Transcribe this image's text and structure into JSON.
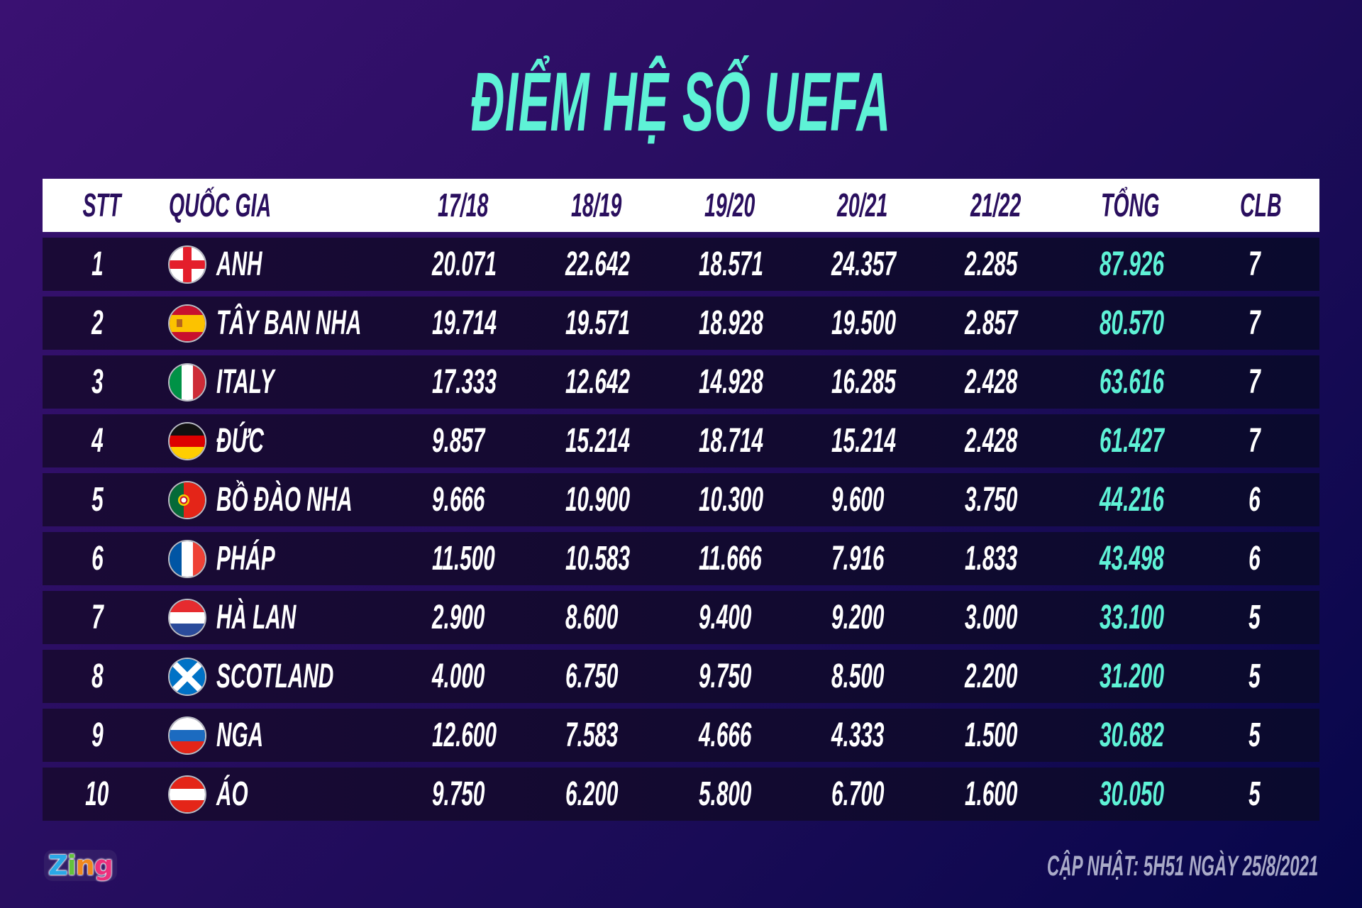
{
  "title": "ĐIỂM HỆ SỐ UEFA",
  "colors": {
    "accent": "#5ef2d6",
    "header_bg": "#ffffff",
    "header_text": "#2a0f5e",
    "row_bg": "#140a32",
    "background_start": "#3a1172",
    "background_end": "#06064a",
    "footer_text": "#a9aac8"
  },
  "table": {
    "columns": [
      "STT",
      "QUỐC GIA",
      "17/18",
      "18/19",
      "19/20",
      "20/21",
      "21/22",
      "TỔNG",
      "CLB"
    ],
    "rows": [
      {
        "rank": "1",
        "flag": "england-flag-icon",
        "country": "ANH",
        "s1718": "20.071",
        "s1819": "22.642",
        "s1920": "18.571",
        "s2021": "24.357",
        "s2122": "2.285",
        "total": "87.926",
        "clubs": "7"
      },
      {
        "rank": "2",
        "flag": "spain-flag-icon",
        "country": "TÂY BAN NHA",
        "s1718": "19.714",
        "s1819": "19.571",
        "s1920": "18.928",
        "s2021": "19.500",
        "s2122": "2.857",
        "total": "80.570",
        "clubs": "7"
      },
      {
        "rank": "3",
        "flag": "italy-flag-icon",
        "country": "ITALY",
        "s1718": "17.333",
        "s1819": "12.642",
        "s1920": "14.928",
        "s2021": "16.285",
        "s2122": "2.428",
        "total": "63.616",
        "clubs": "7"
      },
      {
        "rank": "4",
        "flag": "germany-flag-icon",
        "country": "ĐỨC",
        "s1718": "9.857",
        "s1819": "15.214",
        "s1920": "18.714",
        "s2021": "15.214",
        "s2122": "2.428",
        "total": "61.427",
        "clubs": "7"
      },
      {
        "rank": "5",
        "flag": "portugal-flag-icon",
        "country": "BỒ ĐÀO NHA",
        "s1718": "9.666",
        "s1819": "10.900",
        "s1920": "10.300",
        "s2021": "9.600",
        "s2122": "3.750",
        "total": "44.216",
        "clubs": "6"
      },
      {
        "rank": "6",
        "flag": "france-flag-icon",
        "country": "PHÁP",
        "s1718": "11.500",
        "s1819": "10.583",
        "s1920": "11.666",
        "s2021": "7.916",
        "s2122": "1.833",
        "total": "43.498",
        "clubs": "6"
      },
      {
        "rank": "7",
        "flag": "netherlands-flag-icon",
        "country": "HÀ LAN",
        "s1718": "2.900",
        "s1819": "8.600",
        "s1920": "9.400",
        "s2021": "9.200",
        "s2122": "3.000",
        "total": "33.100",
        "clubs": "5"
      },
      {
        "rank": "8",
        "flag": "scotland-flag-icon",
        "country": "SCOTLAND",
        "s1718": "4.000",
        "s1819": "6.750",
        "s1920": "9.750",
        "s2021": "8.500",
        "s2122": "2.200",
        "total": "31.200",
        "clubs": "5"
      },
      {
        "rank": "9",
        "flag": "russia-flag-icon",
        "country": "NGA",
        "s1718": "12.600",
        "s1819": "7.583",
        "s1920": "4.666",
        "s2021": "4.333",
        "s2122": "1.500",
        "total": "30.682",
        "clubs": "5"
      },
      {
        "rank": "10",
        "flag": "austria-flag-icon",
        "country": "ÁO",
        "s1718": "9.750",
        "s1819": "6.200",
        "s1920": "5.800",
        "s2021": "6.700",
        "s2122": "1.600",
        "total": "30.050",
        "clubs": "5"
      }
    ]
  },
  "footer": {
    "logo": {
      "z": "Z",
      "i": "i",
      "n": "n",
      "g": "g"
    },
    "updated": "CẬP NHẬT: 5H51 NGÀY 25/8/2021"
  }
}
